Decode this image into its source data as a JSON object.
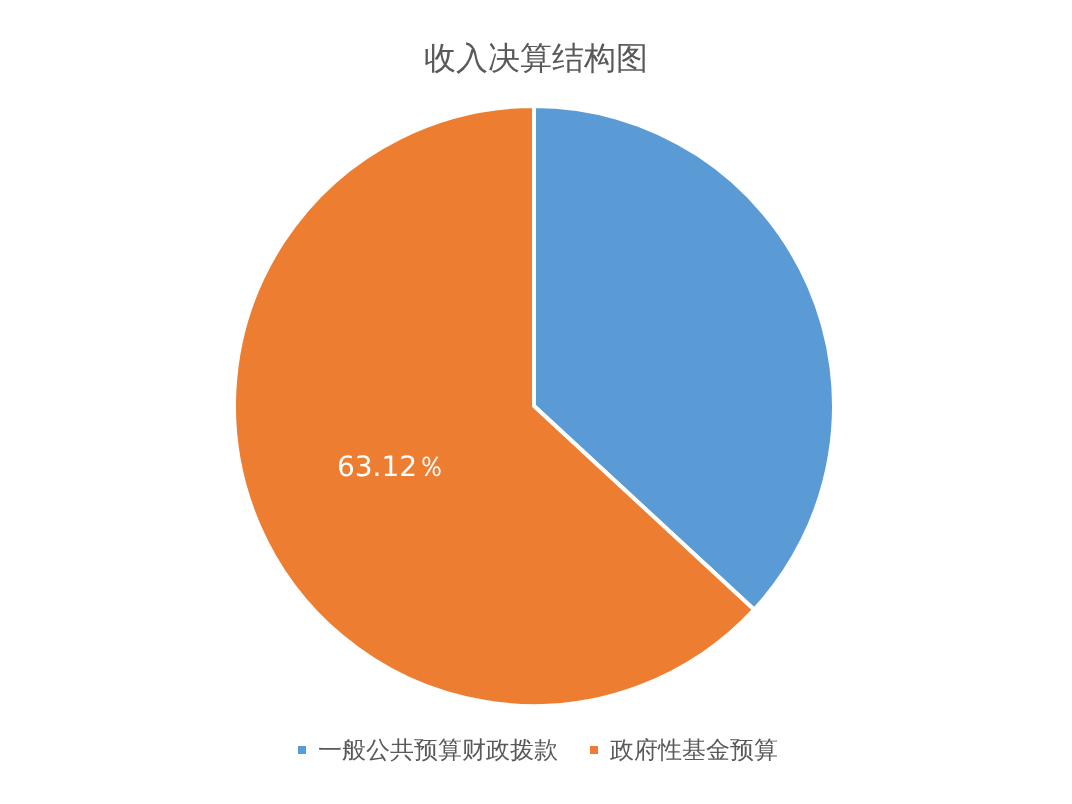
{
  "chart_data": {
    "type": "pie",
    "title": "收入决算结构图",
    "categories": [
      "一般公共预算财政拨款",
      "政府性基金预算"
    ],
    "values": [
      36.88,
      63.12
    ],
    "colors": [
      "#5b9bd5",
      "#ed7d31"
    ],
    "value_labels": [
      null,
      "63.12％"
    ],
    "legend": "bottom"
  }
}
